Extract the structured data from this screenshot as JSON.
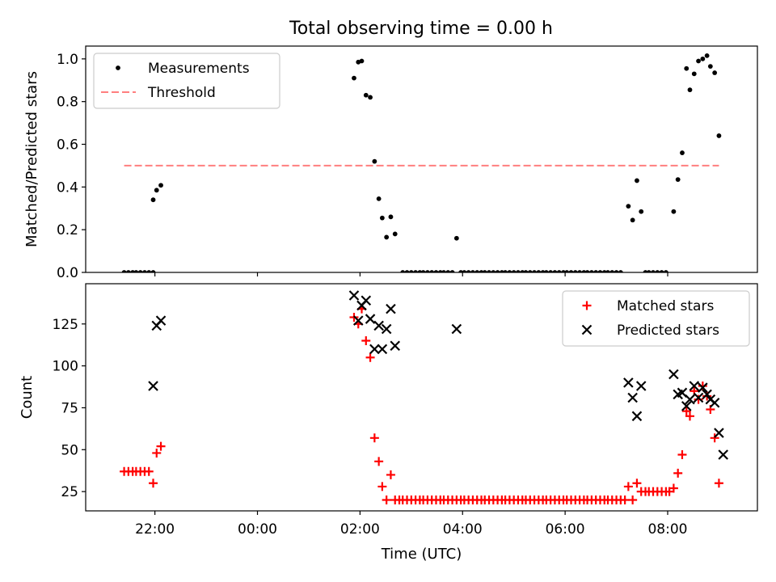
{
  "chart_data": [
    {
      "type": "scatter",
      "title": "Total observing time = 0.00 h",
      "xlabel": "",
      "ylabel": "Matched/Predicted stars",
      "xlim_hours": [
        20.65,
        33.75
      ],
      "ylim": [
        0,
        1.06
      ],
      "x_tick_labels": [
        "22:00",
        "00:00",
        "02:00",
        "04:00",
        "06:00",
        "08:00"
      ],
      "y_tick_labels": [
        "0.0",
        "0.2",
        "0.4",
        "0.6",
        "0.8",
        "1.0"
      ],
      "y_ticks": [
        0,
        0.2,
        0.4,
        0.6,
        0.8,
        1.0
      ],
      "legend_position": "top-left",
      "series": [
        {
          "name": "Measurements",
          "marker": "dot",
          "color": "#000000",
          "points": [
            [
              "21:24",
              0
            ],
            [
              "21:29",
              0
            ],
            [
              "21:34",
              0
            ],
            [
              "21:38",
              0
            ],
            [
              "21:43",
              0
            ],
            [
              "21:48",
              0
            ],
            [
              "21:53",
              0
            ],
            [
              "21:58",
              0
            ],
            [
              "21:58",
              0.34
            ],
            [
              "22:02",
              0.385
            ],
            [
              "22:07",
              0.408
            ],
            [
              "01:53",
              0.91
            ],
            [
              "01:58",
              0.985
            ],
            [
              "02:02",
              0.99
            ],
            [
              "02:07",
              0.83
            ],
            [
              "02:12",
              0.82
            ],
            [
              "02:17",
              0.52
            ],
            [
              "02:22",
              0.345
            ],
            [
              "02:26",
              0.255
            ],
            [
              "02:31",
              0.165
            ],
            [
              "02:36",
              0.26
            ],
            [
              "02:41",
              0.18
            ],
            [
              "02:50",
              0
            ],
            [
              "02:55",
              0
            ],
            [
              "03:00",
              0
            ],
            [
              "03:05",
              0
            ],
            [
              "03:10",
              0
            ],
            [
              "03:14",
              0
            ],
            [
              "03:19",
              0
            ],
            [
              "03:24",
              0
            ],
            [
              "03:29",
              0
            ],
            [
              "03:34",
              0
            ],
            [
              "03:38",
              0
            ],
            [
              "03:43",
              0
            ],
            [
              "03:48",
              0
            ],
            [
              "03:53",
              0.16
            ],
            [
              "03:58",
              0
            ],
            [
              "04:02",
              0
            ],
            [
              "04:07",
              0
            ],
            [
              "04:12",
              0
            ],
            [
              "04:17",
              0
            ],
            [
              "04:22",
              0
            ],
            [
              "04:26",
              0
            ],
            [
              "04:31",
              0
            ],
            [
              "04:36",
              0
            ],
            [
              "04:41",
              0
            ],
            [
              "04:46",
              0
            ],
            [
              "04:50",
              0
            ],
            [
              "04:55",
              0
            ],
            [
              "05:00",
              0
            ],
            [
              "05:05",
              0
            ],
            [
              "05:10",
              0
            ],
            [
              "05:14",
              0
            ],
            [
              "05:19",
              0
            ],
            [
              "05:24",
              0
            ],
            [
              "05:29",
              0
            ],
            [
              "05:34",
              0
            ],
            [
              "05:38",
              0
            ],
            [
              "05:43",
              0
            ],
            [
              "05:48",
              0
            ],
            [
              "05:53",
              0
            ],
            [
              "05:58",
              0
            ],
            [
              "06:02",
              0
            ],
            [
              "06:07",
              0
            ],
            [
              "06:12",
              0
            ],
            [
              "06:17",
              0
            ],
            [
              "06:22",
              0
            ],
            [
              "06:26",
              0
            ],
            [
              "06:31",
              0
            ],
            [
              "06:36",
              0
            ],
            [
              "06:41",
              0
            ],
            [
              "06:46",
              0
            ],
            [
              "06:50",
              0
            ],
            [
              "06:55",
              0
            ],
            [
              "07:00",
              0
            ],
            [
              "07:05",
              0
            ],
            [
              "07:14",
              0.31
            ],
            [
              "07:19",
              0.245
            ],
            [
              "07:24",
              0.43
            ],
            [
              "07:29",
              0.285
            ],
            [
              "07:34",
              0
            ],
            [
              "07:38",
              0
            ],
            [
              "07:43",
              0
            ],
            [
              "07:48",
              0
            ],
            [
              "07:53",
              0
            ],
            [
              "07:58",
              0
            ],
            [
              "08:07",
              0.285
            ],
            [
              "08:12",
              0.435
            ],
            [
              "08:17",
              0.56
            ],
            [
              "08:22",
              0.955
            ],
            [
              "08:26",
              0.855
            ],
            [
              "08:31",
              0.93
            ],
            [
              "08:36",
              0.99
            ],
            [
              "08:41",
              1.0
            ],
            [
              "08:46",
              1.015
            ],
            [
              "08:50",
              0.965
            ],
            [
              "08:55",
              0.935
            ],
            [
              "09:00",
              0.64
            ]
          ]
        },
        {
          "name": "Threshold",
          "marker": "dashed-line",
          "color": "#ff7f7f",
          "value": 0.5,
          "x_range": [
            "21:24",
            "09:00"
          ]
        }
      ]
    },
    {
      "type": "scatter",
      "title": "",
      "xlabel": "Time (UTC)",
      "ylabel": "Count",
      "xlim_hours": [
        20.65,
        33.75
      ],
      "ylim": [
        13.5,
        149
      ],
      "x_tick_labels": [
        "22:00",
        "00:00",
        "02:00",
        "04:00",
        "06:00",
        "08:00"
      ],
      "y_tick_labels": [
        "25",
        "50",
        "75",
        "100",
        "125"
      ],
      "y_ticks": [
        25,
        50,
        75,
        100,
        125
      ],
      "legend_position": "top-right",
      "series": [
        {
          "name": "Matched stars",
          "marker": "plus",
          "color": "#ff0000",
          "points": [
            [
              "21:24",
              37
            ],
            [
              "21:29",
              37
            ],
            [
              "21:34",
              37
            ],
            [
              "21:38",
              37
            ],
            [
              "21:43",
              37
            ],
            [
              "21:48",
              37
            ],
            [
              "21:53",
              37
            ],
            [
              "21:58",
              30
            ],
            [
              "22:02",
              48
            ],
            [
              "22:07",
              52
            ],
            [
              "01:53",
              129
            ],
            [
              "01:58",
              125
            ],
            [
              "02:02",
              134
            ],
            [
              "02:07",
              115
            ],
            [
              "02:12",
              105
            ],
            [
              "02:17",
              57
            ],
            [
              "02:22",
              43
            ],
            [
              "02:26",
              28
            ],
            [
              "02:31",
              20
            ],
            [
              "02:36",
              35
            ],
            [
              "02:41",
              20
            ],
            [
              "02:46",
              20
            ],
            [
              "02:50",
              20
            ],
            [
              "02:55",
              20
            ],
            [
              "03:00",
              20
            ],
            [
              "03:05",
              20
            ],
            [
              "03:10",
              20
            ],
            [
              "03:14",
              20
            ],
            [
              "03:19",
              20
            ],
            [
              "03:24",
              20
            ],
            [
              "03:29",
              20
            ],
            [
              "03:34",
              20
            ],
            [
              "03:38",
              20
            ],
            [
              "03:43",
              20
            ],
            [
              "03:48",
              20
            ],
            [
              "03:53",
              20
            ],
            [
              "03:58",
              20
            ],
            [
              "04:02",
              20
            ],
            [
              "04:07",
              20
            ],
            [
              "04:12",
              20
            ],
            [
              "04:17",
              20
            ],
            [
              "04:22",
              20
            ],
            [
              "04:26",
              20
            ],
            [
              "04:31",
              20
            ],
            [
              "04:36",
              20
            ],
            [
              "04:41",
              20
            ],
            [
              "04:46",
              20
            ],
            [
              "04:50",
              20
            ],
            [
              "04:55",
              20
            ],
            [
              "05:00",
              20
            ],
            [
              "05:05",
              20
            ],
            [
              "05:10",
              20
            ],
            [
              "05:14",
              20
            ],
            [
              "05:19",
              20
            ],
            [
              "05:24",
              20
            ],
            [
              "05:29",
              20
            ],
            [
              "05:34",
              20
            ],
            [
              "05:38",
              20
            ],
            [
              "05:43",
              20
            ],
            [
              "05:48",
              20
            ],
            [
              "05:53",
              20
            ],
            [
              "05:58",
              20
            ],
            [
              "06:02",
              20
            ],
            [
              "06:07",
              20
            ],
            [
              "06:12",
              20
            ],
            [
              "06:17",
              20
            ],
            [
              "06:22",
              20
            ],
            [
              "06:26",
              20
            ],
            [
              "06:31",
              20
            ],
            [
              "06:36",
              20
            ],
            [
              "06:41",
              20
            ],
            [
              "06:46",
              20
            ],
            [
              "06:50",
              20
            ],
            [
              "06:55",
              20
            ],
            [
              "07:00",
              20
            ],
            [
              "07:05",
              20
            ],
            [
              "07:10",
              20
            ],
            [
              "07:14",
              28
            ],
            [
              "07:19",
              20
            ],
            [
              "07:24",
              30
            ],
            [
              "07:29",
              25
            ],
            [
              "07:34",
              25
            ],
            [
              "07:38",
              25
            ],
            [
              "07:43",
              25
            ],
            [
              "07:48",
              25
            ],
            [
              "07:53",
              25
            ],
            [
              "07:58",
              25
            ],
            [
              "08:02",
              25
            ],
            [
              "08:07",
              27
            ],
            [
              "08:12",
              36
            ],
            [
              "08:17",
              47
            ],
            [
              "08:22",
              73
            ],
            [
              "08:26",
              70
            ],
            [
              "08:31",
              85
            ],
            [
              "08:36",
              80
            ],
            [
              "08:41",
              88
            ],
            [
              "08:46",
              82
            ],
            [
              "08:50",
              74
            ],
            [
              "08:55",
              57
            ],
            [
              "09:00",
              30
            ]
          ]
        },
        {
          "name": "Predicted stars",
          "marker": "x",
          "color": "#000000",
          "points": [
            [
              "21:58",
              88
            ],
            [
              "22:02",
              124
            ],
            [
              "22:07",
              127
            ],
            [
              "01:53",
              142
            ],
            [
              "01:58",
              127
            ],
            [
              "02:02",
              136
            ],
            [
              "02:07",
              139
            ],
            [
              "02:12",
              128
            ],
            [
              "02:17",
              110
            ],
            [
              "02:22",
              124
            ],
            [
              "02:26",
              110
            ],
            [
              "02:31",
              122
            ],
            [
              "02:36",
              134
            ],
            [
              "02:41",
              112
            ],
            [
              "03:53",
              122
            ],
            [
              "07:14",
              90
            ],
            [
              "07:19",
              81
            ],
            [
              "07:24",
              70
            ],
            [
              "07:29",
              88
            ],
            [
              "08:07",
              95
            ],
            [
              "08:12",
              83
            ],
            [
              "08:17",
              84
            ],
            [
              "08:22",
              76
            ],
            [
              "08:26",
              80
            ],
            [
              "08:31",
              88
            ],
            [
              "08:36",
              81
            ],
            [
              "08:41",
              87
            ],
            [
              "08:46",
              83
            ],
            [
              "08:50",
              80
            ],
            [
              "08:55",
              78
            ],
            [
              "09:00",
              60
            ],
            [
              "09:05",
              47
            ]
          ]
        }
      ]
    }
  ]
}
